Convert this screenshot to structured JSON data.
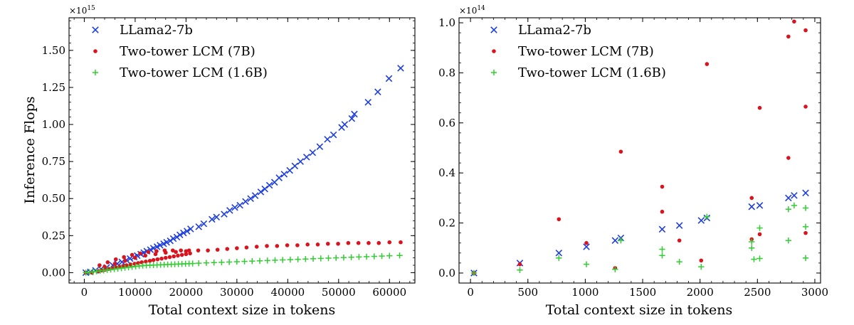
{
  "colors": {
    "blue": "#1f3fdd",
    "red": "#d9141e",
    "green": "#33cc33"
  },
  "chart_data": [
    {
      "type": "scatter",
      "title": "",
      "xlabel": "Total context size in tokens",
      "ylabel": "Inference Flops",
      "multiplier": "×10",
      "multiplier_exp": "15",
      "xlim": [
        -3000,
        65000
      ],
      "ylim": [
        -0.07,
        1.72
      ],
      "xticks": [
        0,
        10000,
        20000,
        30000,
        40000,
        50000,
        60000
      ],
      "xtick_labels": [
        "0",
        "10000",
        "20000",
        "30000",
        "40000",
        "50000",
        "60000"
      ],
      "yticks": [
        0,
        0.25,
        0.5,
        0.75,
        1.0,
        1.25,
        1.5
      ],
      "ytick_labels": [
        "0.00",
        "0.25",
        "0.50",
        "0.75",
        "1.00",
        "1.25",
        "1.50"
      ],
      "legend_position": "top-left",
      "series": [
        {
          "name": "LLama2-7b",
          "marker": "x",
          "color": "#1f3fdd",
          "x": [
            300,
            1200,
            2200,
            3300,
            4400,
            5600,
            6500,
            7400,
            8300,
            9000,
            9800,
            10400,
            11100,
            11700,
            12300,
            13000,
            13600,
            14300,
            14900,
            15600,
            16200,
            16900,
            17500,
            18200,
            18800,
            19500,
            20200,
            20900,
            22500,
            23500,
            25100,
            26000,
            27500,
            28600,
            29600,
            30600,
            31700,
            32700,
            33600,
            34700,
            35500,
            36400,
            37400,
            38300,
            39300,
            40400,
            41400,
            42500,
            43700,
            44900,
            46300,
            47800,
            49000,
            50600,
            51200,
            52600,
            53100,
            55800,
            57700,
            59900,
            62200
          ],
          "y": [
            0.0,
            0.005,
            0.015,
            0.025,
            0.035,
            0.05,
            0.06,
            0.072,
            0.085,
            0.095,
            0.105,
            0.115,
            0.125,
            0.135,
            0.145,
            0.155,
            0.165,
            0.175,
            0.185,
            0.195,
            0.205,
            0.215,
            0.23,
            0.24,
            0.255,
            0.268,
            0.28,
            0.295,
            0.31,
            0.33,
            0.36,
            0.375,
            0.395,
            0.42,
            0.44,
            0.455,
            0.48,
            0.5,
            0.52,
            0.545,
            0.565,
            0.59,
            0.61,
            0.64,
            0.665,
            0.69,
            0.72,
            0.75,
            0.78,
            0.81,
            0.85,
            0.9,
            0.93,
            0.98,
            1.0,
            1.04,
            1.07,
            1.15,
            1.22,
            1.31,
            1.38
          ]
        },
        {
          "name": "Two-tower LCM (7B)",
          "marker": "dot",
          "color": "#d9141e",
          "x": [
            300,
            1500,
            2800,
            3400,
            4100,
            4800,
            5500,
            6200,
            6900,
            7600,
            8300,
            9100,
            9900,
            10600,
            11300,
            12100,
            12900,
            13600,
            14400,
            15200,
            16000,
            16800,
            17600,
            18400,
            19200,
            20000,
            20800,
            3000,
            4600,
            6200,
            7800,
            9400,
            11000,
            12600,
            14200,
            15800,
            17400,
            19000,
            20600,
            22400,
            24300,
            26200,
            28100,
            30000,
            31900,
            33900,
            35900,
            37900,
            39900,
            41900,
            43900,
            45900,
            47900,
            49900,
            51900,
            53900,
            55900,
            57900,
            60000,
            62200,
            4000,
            6000,
            8000,
            10000,
            12000,
            14000,
            16000,
            18000,
            20000
          ],
          "y": [
            0.0,
            0.0,
            0.01,
            0.015,
            0.02,
            0.025,
            0.03,
            0.035,
            0.04,
            0.045,
            0.05,
            0.055,
            0.06,
            0.065,
            0.07,
            0.075,
            0.08,
            0.085,
            0.09,
            0.095,
            0.1,
            0.105,
            0.11,
            0.115,
            0.12,
            0.125,
            0.13,
            0.05,
            0.07,
            0.09,
            0.105,
            0.12,
            0.13,
            0.14,
            0.145,
            0.15,
            0.15,
            0.15,
            0.15,
            0.15,
            0.15,
            0.155,
            0.16,
            0.165,
            0.17,
            0.175,
            0.18,
            0.18,
            0.185,
            0.185,
            0.19,
            0.19,
            0.195,
            0.195,
            0.2,
            0.2,
            0.2,
            0.2,
            0.205,
            0.205,
            0.04,
            0.06,
            0.08,
            0.1,
            0.115,
            0.125,
            0.135,
            0.14,
            0.145
          ]
        },
        {
          "name": "Two-tower LCM (1.6B)",
          "marker": "plus",
          "color": "#33cc33",
          "x": [
            300,
            1000,
            1700,
            2400,
            3100,
            3800,
            4500,
            5200,
            5900,
            6600,
            7300,
            8000,
            8700,
            9400,
            10100,
            10800,
            11500,
            12200,
            12900,
            13600,
            14300,
            15000,
            15700,
            16400,
            17100,
            17800,
            18500,
            19200,
            19900,
            20600,
            21300,
            22500,
            24000,
            25500,
            27000,
            28500,
            30000,
            31500,
            33000,
            34500,
            36000,
            37500,
            39000,
            40500,
            42000,
            43500,
            45000,
            46500,
            48000,
            49500,
            51000,
            52500,
            54000,
            55500,
            57000,
            58500,
            60000,
            62000
          ],
          "y": [
            0.0,
            0.003,
            0.006,
            0.009,
            0.012,
            0.015,
            0.018,
            0.021,
            0.024,
            0.027,
            0.03,
            0.033,
            0.036,
            0.039,
            0.042,
            0.045,
            0.047,
            0.049,
            0.05,
            0.051,
            0.052,
            0.053,
            0.054,
            0.055,
            0.056,
            0.057,
            0.058,
            0.059,
            0.06,
            0.061,
            0.062,
            0.064,
            0.066,
            0.068,
            0.07,
            0.072,
            0.074,
            0.076,
            0.078,
            0.08,
            0.082,
            0.084,
            0.086,
            0.088,
            0.09,
            0.092,
            0.094,
            0.096,
            0.098,
            0.1,
            0.102,
            0.104,
            0.106,
            0.108,
            0.11,
            0.112,
            0.114,
            0.116
          ]
        }
      ]
    },
    {
      "type": "scatter",
      "title": "",
      "xlabel": "Total context size in tokens",
      "ylabel": "",
      "multiplier": "×10",
      "multiplier_exp": "14",
      "xlim": [
        -100,
        3050
      ],
      "ylim": [
        -0.04,
        1.02
      ],
      "xticks": [
        0,
        500,
        1000,
        1500,
        2000,
        2500,
        3000
      ],
      "xtick_labels": [
        "0",
        "500",
        "1000",
        "1500",
        "2000",
        "2500",
        "3000"
      ],
      "yticks": [
        0,
        0.2,
        0.4,
        0.6,
        0.8,
        1.0
      ],
      "ytick_labels": [
        "0.0",
        "0.2",
        "0.4",
        "0.6",
        "0.8",
        "1.0"
      ],
      "legend_position": "top-left",
      "series": [
        {
          "name": "LLama2-7b",
          "marker": "x",
          "color": "#1f3fdd",
          "x": [
            30,
            430,
            770,
            1010,
            1260,
            1310,
            1670,
            1820,
            2010,
            2060,
            2450,
            2520,
            2770,
            2820,
            2920
          ],
          "y": [
            0.0,
            0.04,
            0.08,
            0.105,
            0.13,
            0.14,
            0.175,
            0.19,
            0.21,
            0.22,
            0.265,
            0.27,
            0.3,
            0.31,
            0.32
          ]
        },
        {
          "name": "Two-tower LCM (7B)",
          "marker": "dot",
          "color": "#d9141e",
          "x": [
            30,
            430,
            770,
            1010,
            1260,
            1310,
            1670,
            1670,
            1820,
            2010,
            2060,
            2450,
            2450,
            2520,
            2520,
            2770,
            2770,
            2820,
            2920,
            2920,
            2920
          ],
          "y": [
            0.0,
            0.035,
            0.215,
            0.12,
            0.02,
            0.485,
            0.345,
            0.245,
            0.13,
            0.05,
            0.835,
            0.3,
            0.135,
            0.66,
            0.155,
            0.945,
            0.46,
            1.005,
            0.97,
            0.665,
            0.16
          ]
        },
        {
          "name": "Two-tower LCM (1.6B)",
          "marker": "plus",
          "color": "#33cc33",
          "x": [
            30,
            430,
            770,
            1010,
            1260,
            1310,
            1670,
            1670,
            1820,
            2010,
            2060,
            2450,
            2450,
            2470,
            2520,
            2520,
            2770,
            2770,
            2820,
            2920,
            2920,
            2920
          ],
          "y": [
            0.0,
            0.012,
            0.06,
            0.035,
            0.015,
            0.13,
            0.095,
            0.07,
            0.045,
            0.025,
            0.225,
            0.125,
            0.1,
            0.055,
            0.18,
            0.058,
            0.255,
            0.13,
            0.27,
            0.26,
            0.185,
            0.06
          ]
        }
      ]
    }
  ]
}
